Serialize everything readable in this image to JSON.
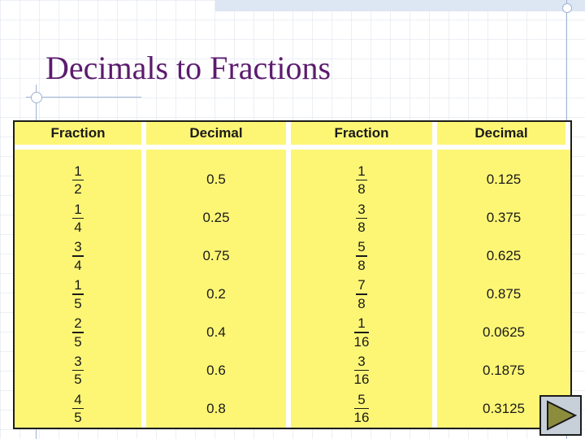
{
  "slide": {
    "title": "Decimals to Fractions"
  },
  "table": {
    "headers": [
      "Fraction",
      "Decimal",
      "Fraction",
      "Decimal"
    ],
    "left": [
      {
        "num": "1",
        "den": "2",
        "dec": "0.5"
      },
      {
        "num": "1",
        "den": "4",
        "dec": "0.25"
      },
      {
        "num": "3",
        "den": "4",
        "dec": "0.75"
      },
      {
        "num": "1",
        "den": "5",
        "dec": "0.2"
      },
      {
        "num": "2",
        "den": "5",
        "dec": "0.4"
      },
      {
        "num": "3",
        "den": "5",
        "dec": "0.6"
      },
      {
        "num": "4",
        "den": "5",
        "dec": "0.8"
      }
    ],
    "right": [
      {
        "num": "1",
        "den": "8",
        "dec": "0.125"
      },
      {
        "num": "3",
        "den": "8",
        "dec": "0.375"
      },
      {
        "num": "5",
        "den": "8",
        "dec": "0.625"
      },
      {
        "num": "7",
        "den": "8",
        "dec": "0.875"
      },
      {
        "num": "1",
        "den": "16",
        "dec": "0.0625"
      },
      {
        "num": "3",
        "den": "16",
        "dec": "0.1875"
      },
      {
        "num": "5",
        "den": "16",
        "dec": "0.3125"
      }
    ]
  },
  "nav": {
    "next_icon": "play-triangle-icon"
  },
  "colors": {
    "title": "#5c1b6e",
    "table_bg": "#fdf675",
    "nav_icon": "#8c8c3d"
  }
}
